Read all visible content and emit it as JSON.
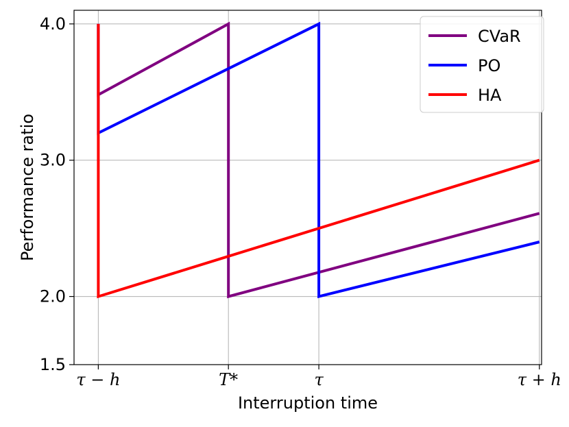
{
  "chart_data": {
    "type": "line",
    "xlabel": "Interruption time",
    "ylabel": "Performance ratio",
    "x_ticks": [
      "τ − h",
      "T*",
      "τ",
      "τ + h"
    ],
    "x_tick_values": [
      0,
      0.59,
      1.0,
      2.0
    ],
    "xlim": [
      -0.11,
      2.01
    ],
    "y_ticks": [
      "1.5",
      "2.0",
      "3.0",
      "4.0"
    ],
    "y_tick_values": [
      1.5,
      2.0,
      3.0,
      4.0
    ],
    "ylim": [
      1.5,
      4.1
    ],
    "grid": true,
    "legend_position": "top-right",
    "series": [
      {
        "name": "CVaR",
        "color": "#800080",
        "points": [
          [
            0,
            4.0
          ],
          [
            0,
            3.48
          ],
          [
            0.59,
            4.0
          ],
          [
            0.59,
            2.0
          ],
          [
            2.0,
            2.61
          ]
        ]
      },
      {
        "name": "PO",
        "color": "#0000ff",
        "points": [
          [
            0,
            4.0
          ],
          [
            0,
            3.2
          ],
          [
            1.0,
            4.0
          ],
          [
            1.0,
            2.0
          ],
          [
            2.0,
            2.4
          ]
        ]
      },
      {
        "name": "HA",
        "color": "#ff0000",
        "points": [
          [
            0,
            4.0
          ],
          [
            0,
            2.0
          ],
          [
            2.0,
            3.0
          ]
        ]
      }
    ]
  }
}
